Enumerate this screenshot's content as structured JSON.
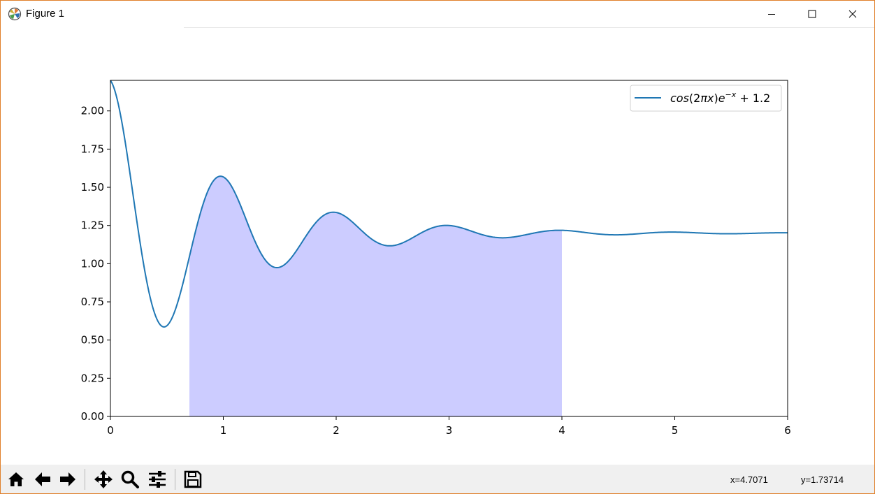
{
  "window": {
    "title": "Figure 1",
    "icons": {
      "app": "matplotlib-logo-icon",
      "minimize": "minimize-icon",
      "maximize": "maximize-icon",
      "close": "close-icon"
    }
  },
  "toolbar": {
    "buttons": [
      {
        "name": "home-button",
        "icon": "home-icon"
      },
      {
        "name": "back-button",
        "icon": "arrow-left-icon"
      },
      {
        "name": "forward-button",
        "icon": "arrow-right-icon"
      },
      {
        "name": "pan-button",
        "icon": "move-icon"
      },
      {
        "name": "zoom-button",
        "icon": "magnifier-icon"
      },
      {
        "name": "configure-subplots-button",
        "icon": "sliders-icon"
      },
      {
        "name": "save-button",
        "icon": "floppy-disk-icon"
      }
    ],
    "coords": {
      "x": "x=4.7071",
      "y": "y=1.73714"
    }
  },
  "chart_data": {
    "type": "line",
    "function": "cos(2*pi*x)*exp(-x) + 1.2",
    "legend": "cos(2πx)e^{−x} + 1.2",
    "legend_placement": "top-right",
    "xlim": [
      0,
      6
    ],
    "ylim": [
      0,
      2.2
    ],
    "xticks": [
      "0",
      "1",
      "2",
      "3",
      "4",
      "5",
      "6"
    ],
    "yticks": [
      "0.00",
      "0.25",
      "0.50",
      "0.75",
      "1.00",
      "1.25",
      "1.50",
      "1.75",
      "2.00"
    ],
    "fill_between": {
      "x_start": 0.7,
      "x_end": 4.0,
      "color": "#ccccff"
    },
    "line_color": "#1f77b4",
    "grid": false,
    "samples": {
      "x": [
        0,
        0.25,
        0.5,
        0.75,
        1.0,
        1.25,
        1.5,
        1.75,
        2.0,
        2.25,
        2.5,
        2.75,
        3.0,
        3.25,
        3.5,
        3.75,
        4.0,
        4.5,
        5.0,
        5.5,
        6.0
      ],
      "y": [
        2.2,
        1.2,
        0.59,
        1.2,
        1.57,
        1.2,
        0.98,
        1.2,
        1.34,
        1.2,
        1.12,
        1.2,
        1.25,
        1.2,
        1.17,
        1.2,
        1.22,
        1.19,
        1.21,
        1.2,
        1.2
      ]
    }
  }
}
